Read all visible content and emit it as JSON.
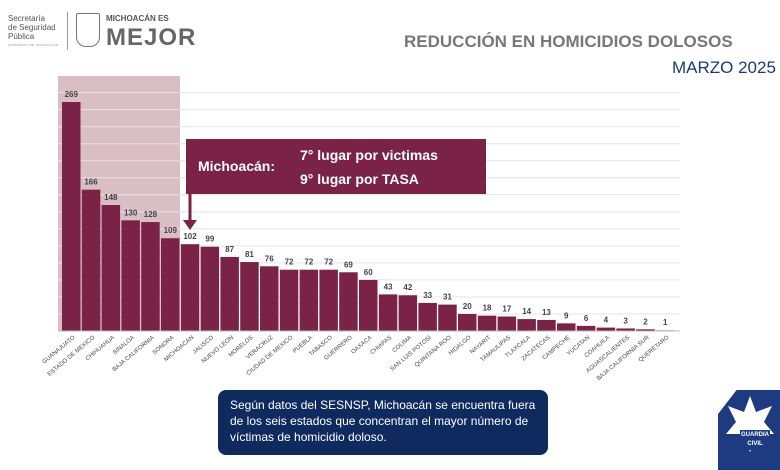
{
  "header": {
    "org_line1": "Secretaría",
    "org_line2": "de Seguridad",
    "org_line3": "Pública",
    "org_small": "GOBIERNO DE MICHOACÁN",
    "brand_top": "MICHOACÁN ES",
    "brand_main": "MEJOR"
  },
  "chart_data": {
    "type": "bar",
    "title": "REDUCCIÓN EN HOMICIDIOS DOLOSOS",
    "subtitle": "MARZO 2025",
    "categories": [
      "GUANAJUATO",
      "ESTADO DE MEXICO",
      "CHIHUAHUA",
      "SINALOA",
      "BAJA CALIFORNIA",
      "SONORA",
      "MICHOACAN",
      "JALISCO",
      "NUEVO LEON",
      "MORELOS",
      "VERACRUZ",
      "CIUDAD DE MEXICO",
      "PUEBLA",
      "TABASCO",
      "GUERRERO",
      "OAXACA",
      "CHIAPAS",
      "COLIMA",
      "SAN LUIS POTOSI",
      "QUINTANA ROO",
      "HIDALGO",
      "NAYARIT",
      "TAMAULIPAS",
      "TLAXCALA",
      "ZACATECAS",
      "CAMPECHE",
      "YUCATAN",
      "COAHUILA",
      "AGUASCALIENTES",
      "BAJA CALIFORNIA SUR",
      "QUERETARO"
    ],
    "values": [
      269,
      166,
      148,
      130,
      128,
      109,
      102,
      99,
      87,
      81,
      76,
      72,
      72,
      72,
      69,
      60,
      43,
      42,
      33,
      31,
      20,
      18,
      17,
      14,
      13,
      9,
      6,
      4,
      3,
      2,
      1
    ],
    "ylim": [
      0,
      280
    ],
    "grid": true,
    "xlabel": "",
    "ylabel": "",
    "highlighted_count": 6,
    "colors": {
      "bar": "#7b2346",
      "highlight": "#c9a3ae",
      "last_bar": "#c49aa6"
    }
  },
  "callout": {
    "state": "Michoacán:",
    "line1": "7° lugar por victimas",
    "line2": "9° lugar por TASA"
  },
  "note": "Según datos del SESNSP, Michoacán se encuentra fuera de los seis estados que concentran el mayor número de víctimas de homicidio doloso.",
  "badge": {
    "line1": "GUARDIA",
    "line2": "CIVIL"
  }
}
